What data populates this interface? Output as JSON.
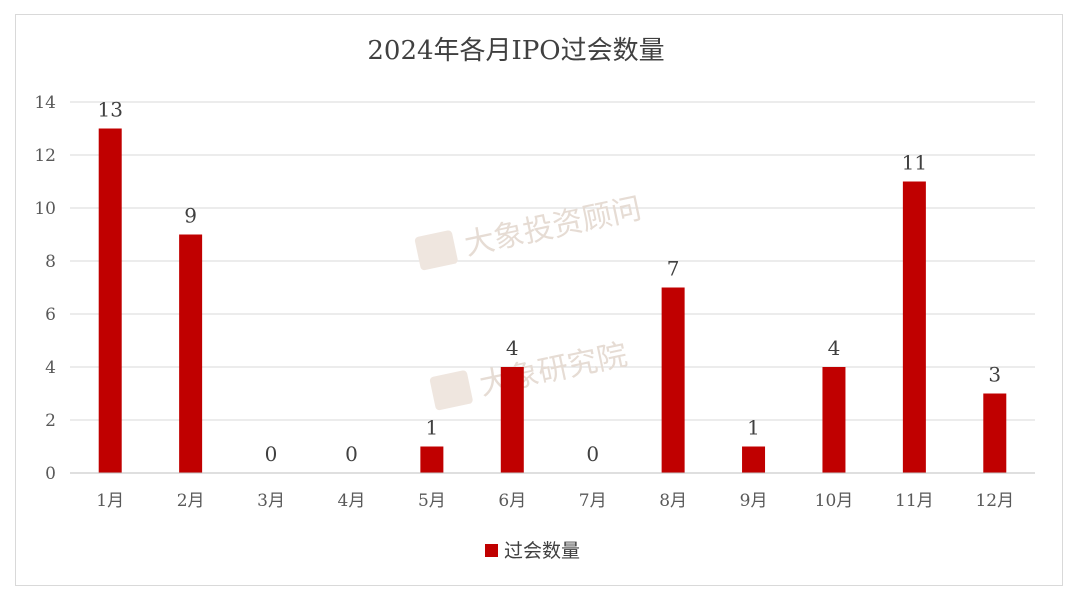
{
  "chart_data": {
    "type": "bar",
    "title": "2024年各月IPO过会数量",
    "categories": [
      "1月",
      "2月",
      "3月",
      "4月",
      "5月",
      "6月",
      "7月",
      "8月",
      "9月",
      "10月",
      "11月",
      "12月"
    ],
    "series": [
      {
        "name": "过会数量",
        "values": [
          13,
          9,
          0,
          0,
          1,
          4,
          0,
          7,
          1,
          4,
          11,
          3
        ],
        "color": "#c00000"
      }
    ],
    "ylim": [
      0,
      14
    ],
    "yticks": [
      0,
      2,
      4,
      6,
      8,
      10,
      12,
      14
    ],
    "grid": true,
    "legend": "bottom",
    "data_labels": true
  },
  "watermarks": [
    "大象投资顾问",
    "大象研究院"
  ],
  "colors": {
    "bar": "#c00000",
    "grid": "#d9d9d9",
    "axis": "#bfbfbf",
    "text": "#595959"
  }
}
